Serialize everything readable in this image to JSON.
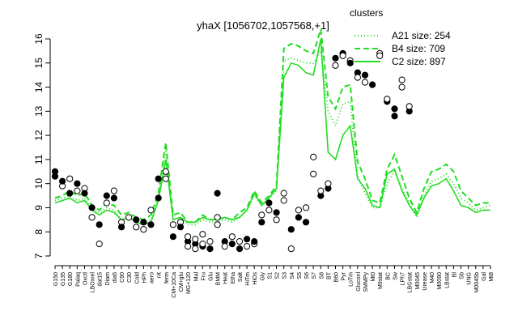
{
  "chart_data": {
    "type": "line",
    "title": "yhaX [1056702,1057568,+1]",
    "xlabel": "",
    "ylabel": "",
    "ylim": [
      7,
      16
    ],
    "yticks": [
      7,
      8,
      9,
      10,
      11,
      12,
      13,
      14,
      15,
      16
    ],
    "grid": false,
    "legend": {
      "title": "clusters",
      "placement": "top-right",
      "entries": [
        {
          "label": "A21 size: 254",
          "style": "dotted"
        },
        {
          "label": "B4 size: 709",
          "style": "dashed"
        },
        {
          "label": "C2 size: 897",
          "style": "solid"
        }
      ]
    },
    "x_tick_labels": [
      "G150",
      "G135",
      "G180",
      "Palaq",
      "Oxctl",
      "LBOxrel",
      "dat15",
      "Diam",
      "dia5",
      "C90",
      "C30",
      "Cold",
      "HPh",
      "aero",
      "nit",
      "ferm",
      "CM+10Ca",
      "CM+glu",
      "MG+120",
      "Mal",
      "Fru",
      "Glu",
      "BMM",
      "Heat",
      "Etha",
      "Salt",
      "HiTm",
      "HiOs",
      "Gly",
      "S1",
      "S2",
      "S3",
      "S4",
      "S5",
      "S6",
      "S7",
      "S8",
      "BT",
      "B60",
      "Pyr",
      "LoTm",
      "Gluconl",
      "SMMPy",
      "Mt0",
      "M9stat",
      "BC",
      "Sw",
      "LPh7",
      "LBGstat",
      "M0045",
      "Urease",
      "M40",
      "M0090",
      "LBstat",
      "Bl",
      "Sb",
      "UNG",
      "M0045b",
      "Gal",
      "Mt8"
    ],
    "x": [
      1,
      2,
      3,
      4,
      5,
      6,
      7,
      8,
      9,
      10,
      11,
      12,
      13,
      14,
      15,
      16,
      17,
      18,
      19,
      20,
      21,
      22,
      23,
      24,
      25,
      26,
      27,
      28,
      29,
      30,
      31,
      32,
      33,
      34,
      35,
      36,
      37,
      38,
      39,
      40,
      41,
      42,
      43,
      44,
      45,
      46,
      47,
      48,
      49,
      50,
      51,
      52,
      53,
      54,
      55,
      56,
      57,
      58,
      59,
      60
    ],
    "series": [
      {
        "name": "A21 size: 254",
        "style": "dotted",
        "values": [
          9.3,
          9.4,
          9.5,
          9.3,
          9.4,
          9.0,
          8.8,
          9.0,
          8.9,
          8.5,
          8.6,
          8.4,
          8.3,
          8.5,
          9.4,
          11.4,
          8.5,
          8.6,
          8.3,
          8.3,
          8.5,
          8.4,
          8.4,
          8.5,
          8.4,
          8.6,
          8.9,
          9.5,
          9.1,
          9.4,
          9.7,
          15.1,
          15.2,
          15.1,
          15.0,
          15.0,
          15.5,
          13.0,
          12.4,
          13.3,
          13.4,
          10.3,
          9.6,
          9.0,
          9.0,
          10.0,
          10.5,
          9.8,
          9.2,
          8.6,
          9.5,
          10.1,
          10.2,
          10.4,
          10.0,
          9.4,
          9.2,
          8.9,
          9.0,
          9.1
        ]
      },
      {
        "name": "B4 size: 709",
        "style": "dashed",
        "values": [
          9.4,
          9.5,
          9.7,
          9.5,
          9.6,
          9.1,
          8.9,
          9.2,
          9.1,
          8.7,
          8.8,
          8.6,
          8.5,
          8.7,
          9.6,
          11.7,
          8.7,
          8.8,
          8.4,
          8.4,
          8.7,
          8.5,
          8.5,
          8.6,
          8.5,
          8.8,
          9.0,
          9.7,
          9.2,
          9.5,
          9.9,
          15.6,
          15.8,
          15.7,
          15.5,
          15.4,
          16.4,
          13.6,
          13.1,
          14.0,
          14.1,
          10.9,
          10.2,
          9.3,
          9.2,
          10.6,
          11.2,
          10.3,
          9.4,
          8.8,
          9.8,
          10.5,
          10.6,
          10.8,
          10.5,
          9.7,
          9.4,
          9.1,
          9.2,
          9.2
        ]
      },
      {
        "name": "C2 size: 897",
        "style": "solid",
        "values": [
          9.2,
          9.3,
          9.4,
          9.2,
          9.3,
          8.9,
          8.7,
          8.9,
          8.8,
          8.5,
          8.6,
          8.4,
          8.3,
          8.4,
          9.3,
          11.0,
          8.5,
          8.6,
          8.4,
          8.4,
          8.6,
          8.5,
          8.5,
          8.6,
          8.5,
          8.6,
          8.9,
          9.6,
          9.1,
          9.4,
          9.8,
          14.4,
          15.0,
          14.9,
          14.6,
          14.5,
          16.0,
          11.3,
          11.0,
          12.0,
          12.4,
          10.2,
          9.8,
          9.1,
          9.0,
          10.4,
          10.6,
          9.7,
          9.1,
          8.7,
          9.4,
          9.9,
          10.0,
          10.2,
          9.7,
          9.1,
          9.0,
          8.8,
          8.9,
          8.9
        ]
      }
    ],
    "points": [
      {
        "x": 1,
        "y": 10.5,
        "f": 1
      },
      {
        "x": 1,
        "y": 10.3,
        "f": 1
      },
      {
        "x": 2,
        "y": 9.9,
        "f": 0
      },
      {
        "x": 2,
        "y": 10.1,
        "f": 1
      },
      {
        "x": 3,
        "y": 10.2,
        "f": 0
      },
      {
        "x": 3,
        "y": 9.6,
        "f": 1
      },
      {
        "x": 4,
        "y": 10.0,
        "f": 1
      },
      {
        "x": 4,
        "y": 9.7,
        "f": 0
      },
      {
        "x": 5,
        "y": 9.8,
        "f": 0
      },
      {
        "x": 5,
        "y": 9.6,
        "f": 1
      },
      {
        "x": 6,
        "y": 8.6,
        "f": 0
      },
      {
        "x": 6,
        "y": 9.0,
        "f": 1
      },
      {
        "x": 7,
        "y": 7.5,
        "f": 0
      },
      {
        "x": 7,
        "y": 8.3,
        "f": 1
      },
      {
        "x": 8,
        "y": 9.5,
        "f": 1
      },
      {
        "x": 8,
        "y": 9.2,
        "f": 0
      },
      {
        "x": 9,
        "y": 9.7,
        "f": 0
      },
      {
        "x": 9,
        "y": 9.4,
        "f": 1
      },
      {
        "x": 10,
        "y": 8.4,
        "f": 0
      },
      {
        "x": 10,
        "y": 8.2,
        "f": 1
      },
      {
        "x": 11,
        "y": 8.6,
        "f": 0
      },
      {
        "x": 12,
        "y": 8.5,
        "f": 1
      },
      {
        "x": 12,
        "y": 8.2,
        "f": 0
      },
      {
        "x": 13,
        "y": 8.4,
        "f": 1
      },
      {
        "x": 13,
        "y": 8.1,
        "f": 0
      },
      {
        "x": 14,
        "y": 8.9,
        "f": 0
      },
      {
        "x": 14,
        "y": 8.3,
        "f": 1
      },
      {
        "x": 15,
        "y": 10.2,
        "f": 1
      },
      {
        "x": 15,
        "y": 9.4,
        "f": 1
      },
      {
        "x": 16,
        "y": 10.5,
        "f": 0
      },
      {
        "x": 16,
        "y": 10.2,
        "f": 0
      },
      {
        "x": 17,
        "y": 7.8,
        "f": 1
      },
      {
        "x": 17,
        "y": 8.3,
        "f": 0
      },
      {
        "x": 18,
        "y": 8.4,
        "f": 0
      },
      {
        "x": 18,
        "y": 8.2,
        "f": 1
      },
      {
        "x": 19,
        "y": 7.6,
        "f": 1
      },
      {
        "x": 19,
        "y": 7.8,
        "f": 0
      },
      {
        "x": 19,
        "y": 7.4,
        "f": 0
      },
      {
        "x": 20,
        "y": 7.5,
        "f": 1
      },
      {
        "x": 20,
        "y": 7.3,
        "f": 0
      },
      {
        "x": 20,
        "y": 7.7,
        "f": 0
      },
      {
        "x": 21,
        "y": 7.4,
        "f": 1
      },
      {
        "x": 21,
        "y": 7.9,
        "f": 0
      },
      {
        "x": 21,
        "y": 7.5,
        "f": 0
      },
      {
        "x": 22,
        "y": 7.6,
        "f": 0
      },
      {
        "x": 22,
        "y": 7.3,
        "f": 1
      },
      {
        "x": 23,
        "y": 8.6,
        "f": 0
      },
      {
        "x": 23,
        "y": 9.6,
        "f": 1
      },
      {
        "x": 23,
        "y": 8.3,
        "f": 0
      },
      {
        "x": 24,
        "y": 7.6,
        "f": 1
      },
      {
        "x": 24,
        "y": 7.4,
        "f": 0
      },
      {
        "x": 25,
        "y": 7.8,
        "f": 0
      },
      {
        "x": 25,
        "y": 7.5,
        "f": 1
      },
      {
        "x": 26,
        "y": 7.6,
        "f": 0
      },
      {
        "x": 26,
        "y": 7.3,
        "f": 1
      },
      {
        "x": 27,
        "y": 7.7,
        "f": 1
      },
      {
        "x": 27,
        "y": 7.4,
        "f": 0
      },
      {
        "x": 28,
        "y": 7.5,
        "f": 0
      },
      {
        "x": 28,
        "y": 7.6,
        "f": 1
      },
      {
        "x": 29,
        "y": 8.7,
        "f": 0
      },
      {
        "x": 29,
        "y": 8.4,
        "f": 1
      },
      {
        "x": 30,
        "y": 8.9,
        "f": 0
      },
      {
        "x": 30,
        "y": 9.2,
        "f": 1
      },
      {
        "x": 31,
        "y": 8.8,
        "f": 1
      },
      {
        "x": 31,
        "y": 8.5,
        "f": 0
      },
      {
        "x": 32,
        "y": 9.6,
        "f": 0
      },
      {
        "x": 32,
        "y": 9.3,
        "f": 0
      },
      {
        "x": 33,
        "y": 8.1,
        "f": 1
      },
      {
        "x": 33,
        "y": 7.3,
        "f": 0
      },
      {
        "x": 34,
        "y": 8.6,
        "f": 1
      },
      {
        "x": 34,
        "y": 8.9,
        "f": 0
      },
      {
        "x": 35,
        "y": 8.4,
        "f": 1
      },
      {
        "x": 35,
        "y": 9.0,
        "f": 0
      },
      {
        "x": 36,
        "y": 10.4,
        "f": 0
      },
      {
        "x": 36,
        "y": 11.1,
        "f": 0
      },
      {
        "x": 37,
        "y": 9.5,
        "f": 1
      },
      {
        "x": 37,
        "y": 9.7,
        "f": 0
      },
      {
        "x": 38,
        "y": 9.8,
        "f": 1
      },
      {
        "x": 38,
        "y": 10.0,
        "f": 0
      },
      {
        "x": 39,
        "y": 15.2,
        "f": 1
      },
      {
        "x": 39,
        "y": 14.9,
        "f": 0
      },
      {
        "x": 40,
        "y": 15.4,
        "f": 1
      },
      {
        "x": 40,
        "y": 15.3,
        "f": 0
      },
      {
        "x": 41,
        "y": 15.1,
        "f": 0
      },
      {
        "x": 41,
        "y": 15.0,
        "f": 1
      },
      {
        "x": 42,
        "y": 14.6,
        "f": 1
      },
      {
        "x": 42,
        "y": 14.4,
        "f": 0
      },
      {
        "x": 43,
        "y": 14.5,
        "f": 1
      },
      {
        "x": 43,
        "y": 14.2,
        "f": 0
      },
      {
        "x": 44,
        "y": 14.1,
        "f": 1
      },
      {
        "x": 45,
        "y": 15.4,
        "f": 0
      },
      {
        "x": 45,
        "y": 15.3,
        "f": 0
      },
      {
        "x": 46,
        "y": 13.4,
        "f": 1
      },
      {
        "x": 46,
        "y": 13.5,
        "f": 0
      },
      {
        "x": 47,
        "y": 13.1,
        "f": 1
      },
      {
        "x": 47,
        "y": 12.8,
        "f": 1
      },
      {
        "x": 48,
        "y": 14.0,
        "f": 0
      },
      {
        "x": 48,
        "y": 14.3,
        "f": 0
      },
      {
        "x": 49,
        "y": 13.0,
        "f": 1
      },
      {
        "x": 49,
        "y": 13.2,
        "f": 0
      }
    ]
  }
}
